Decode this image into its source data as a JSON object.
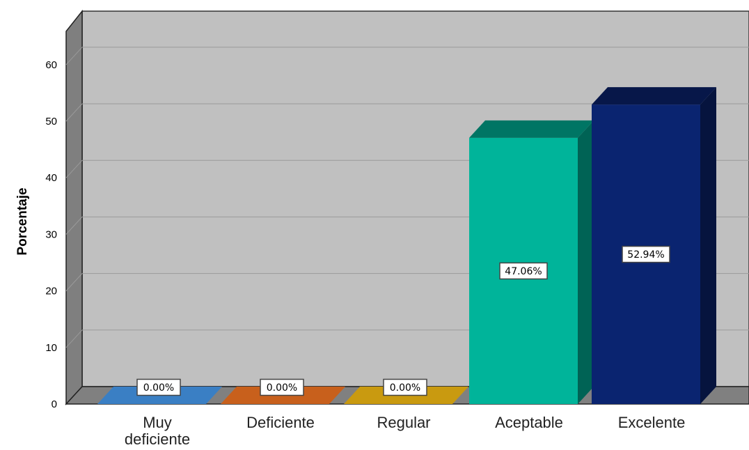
{
  "chart_data": {
    "type": "bar",
    "title": "",
    "xlabel": "",
    "ylabel": "Porcentaje",
    "ylim": [
      0,
      66
    ],
    "yticks": [
      0,
      10,
      20,
      30,
      40,
      50,
      60
    ],
    "grid": true,
    "categories": [
      [
        "Muy",
        "deficiente"
      ],
      [
        "Deficiente"
      ],
      [
        "Regular"
      ],
      [
        "Aceptable"
      ],
      [
        "Excelente"
      ]
    ],
    "values": [
      0.0,
      0.0,
      0.0,
      47.06,
      52.94
    ],
    "data_labels": [
      "0.00%",
      "0.00%",
      "0.00%",
      "47.06%",
      "52.94%"
    ],
    "colors": [
      "#3a7fc4",
      "#c8601c",
      "#c99a10",
      "#00b49a",
      "#0a2470"
    ],
    "background": "#c0c0c0"
  }
}
